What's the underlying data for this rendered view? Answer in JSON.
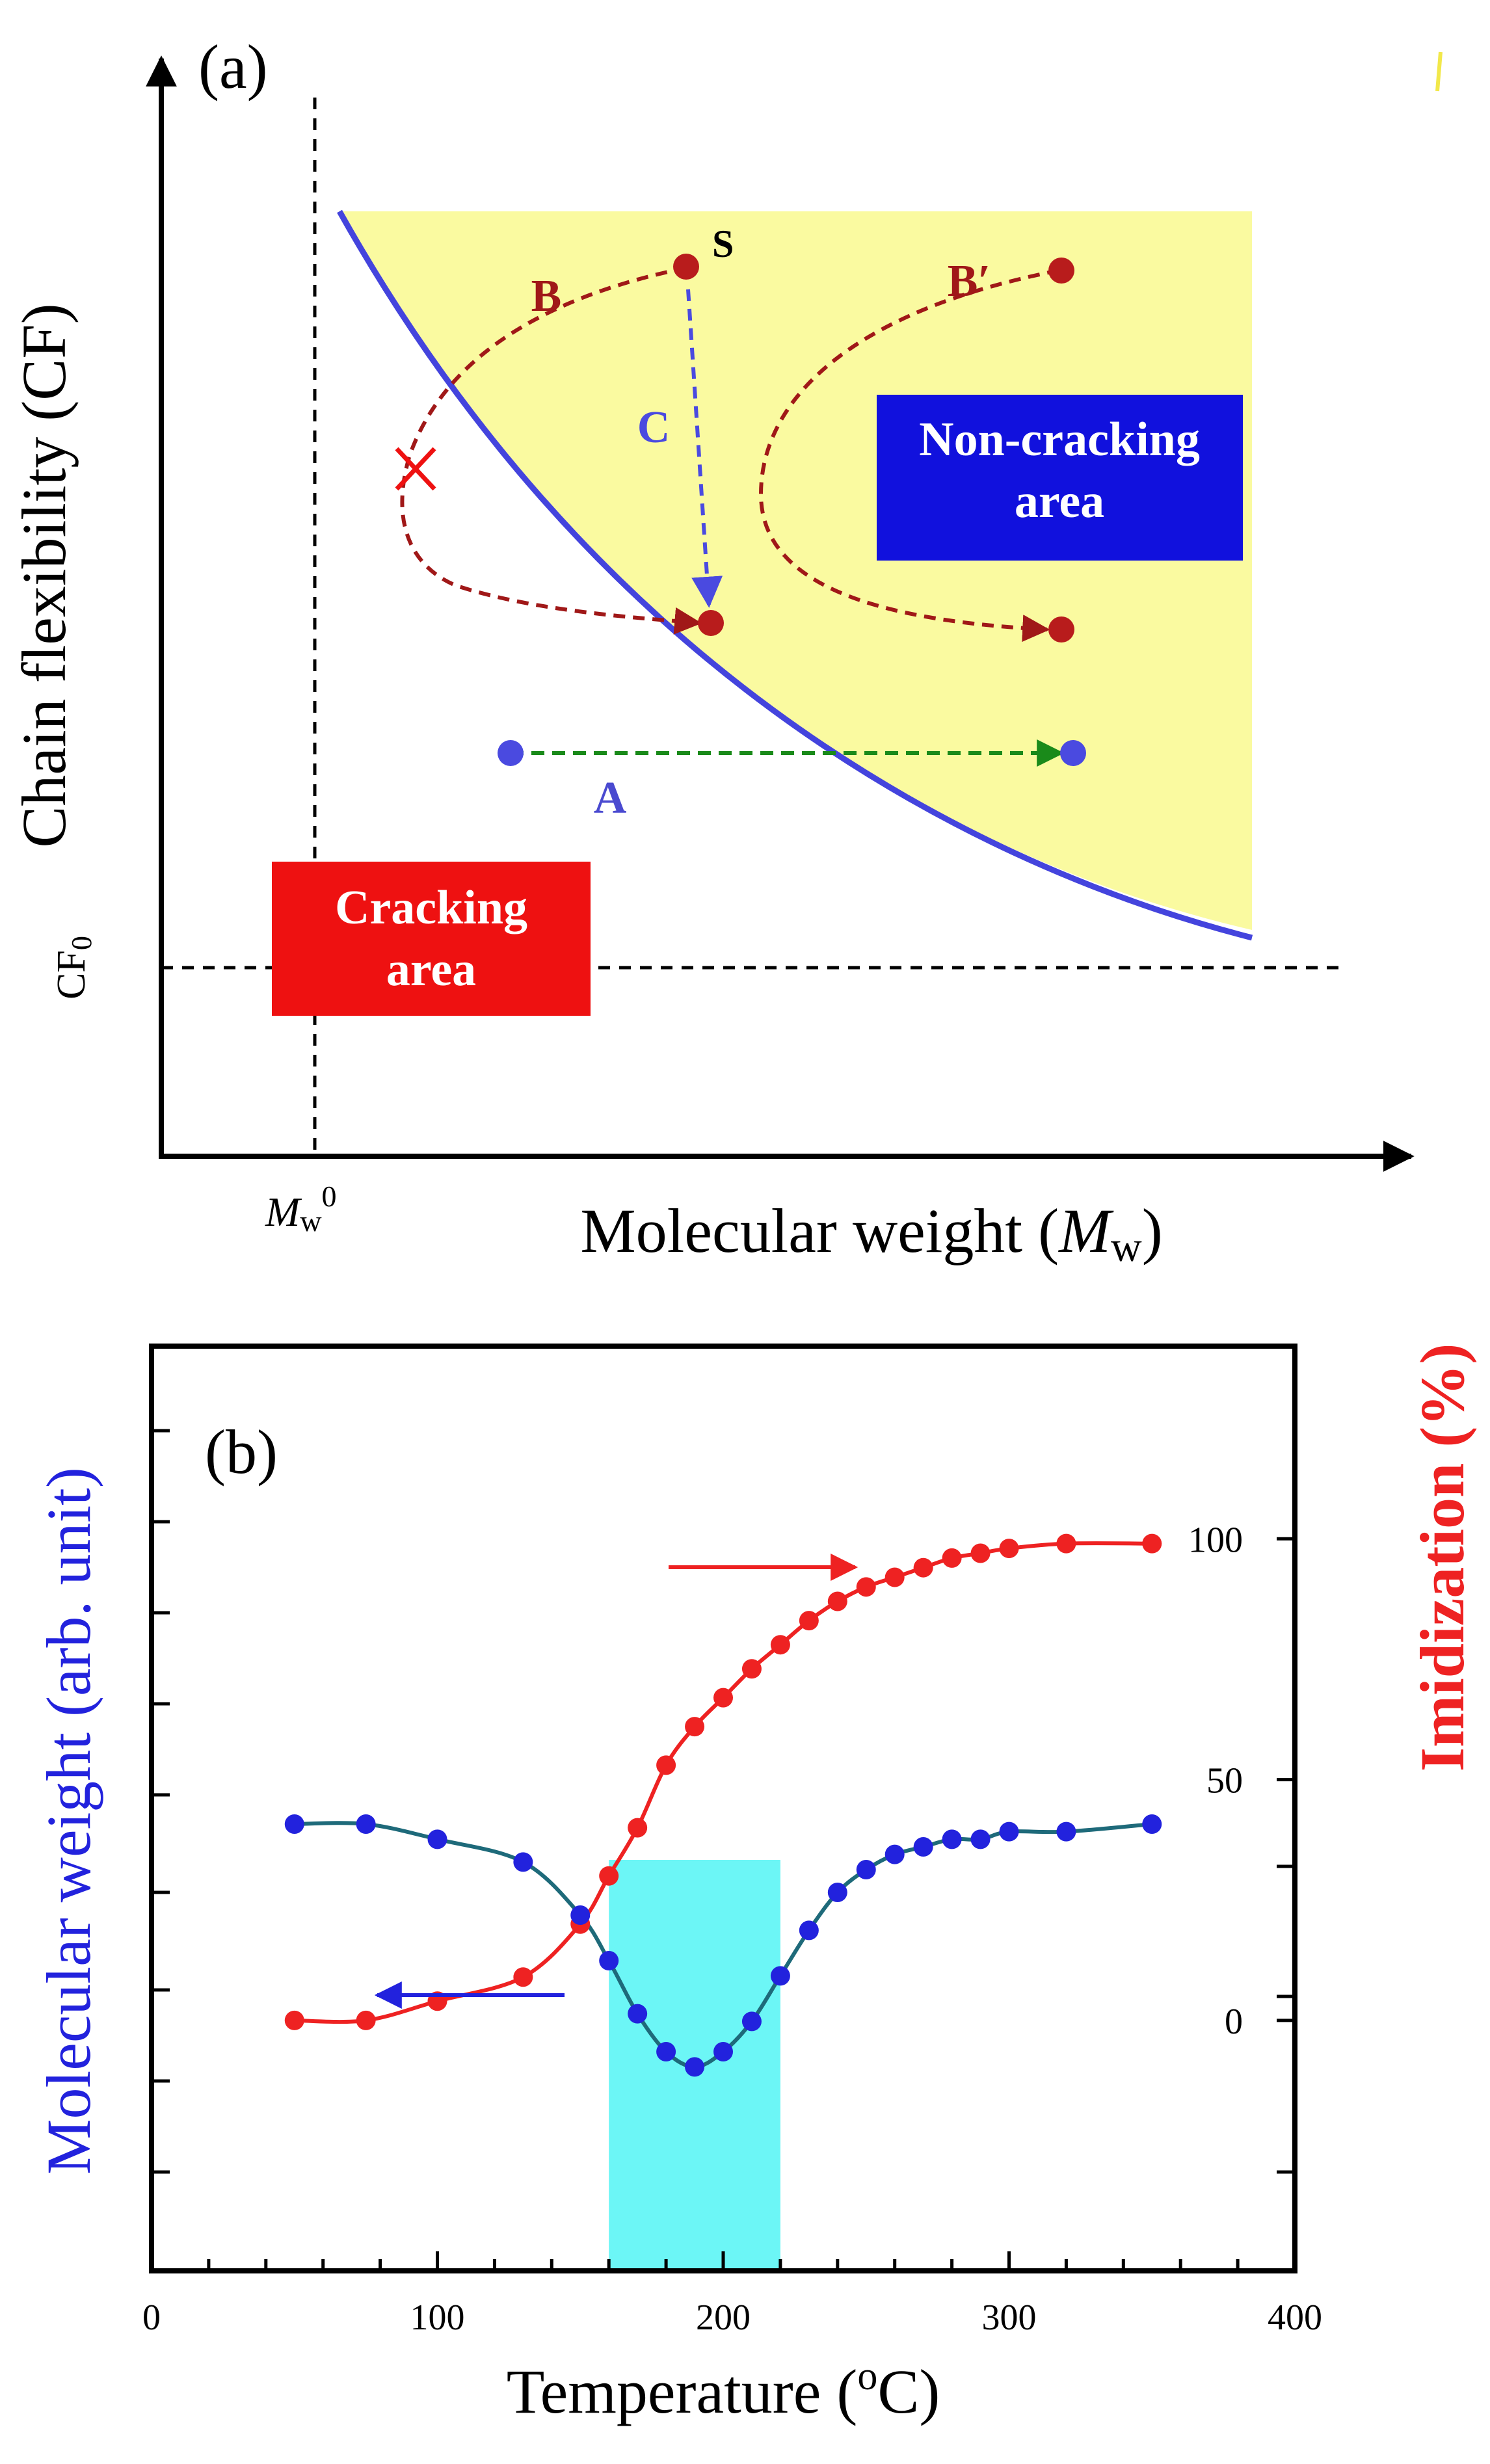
{
  "chart_data": [
    {
      "panel_label": "(a)",
      "type": "diagram",
      "xlabel": "Molecular weight (",
      "xlabel_italic": "M",
      "xlabel_sub": "w",
      "xlabel_close": ")",
      "ylabel": "Chain flexibility (CF)",
      "y_threshold_label": "CF",
      "y_threshold_sub": "0",
      "x_threshold_label": "M",
      "x_threshold_sub": "w",
      "x_threshold_sup": "0",
      "regions": {
        "cracking": "Cracking area",
        "cracking_lines": [
          "Cracking",
          "area"
        ],
        "noncracking": "Non-cracking area",
        "noncracking_lines": [
          "Non-cracking",
          "area"
        ],
        "cracking_color": "#ee1111",
        "noncracking_color": "#1111dd",
        "shade_color": "#fafaa0"
      },
      "paths": [
        {
          "label": "A",
          "color": "#1a8a1a",
          "label_color": "#4a4ad0"
        },
        {
          "label": "B",
          "color": "#a01818",
          "label_color": "#a01818"
        },
        {
          "label": "B′",
          "color": "#a01818",
          "label_color": "#a01818"
        },
        {
          "label": "C",
          "color": "#4a4ae0",
          "label_color": "#4a4ae0"
        }
      ],
      "start_label": "S",
      "boundary_color": "#4444dd"
    },
    {
      "panel_label": "(b)",
      "type": "line",
      "xlabel": "Temperature (",
      "xlabel_sup": "o",
      "xlabel_close": "C)",
      "xlim": [
        0,
        400
      ],
      "xticks": [
        "0",
        "100",
        "200",
        "300",
        "400"
      ],
      "ylabel_left": "Molecular weight (arb. unit)",
      "ylabel_right": "Imidization (%)",
      "ylim_right": [
        -52,
        140
      ],
      "yticks_right": [
        "0",
        "50",
        "100"
      ],
      "ylim_left": [
        0,
        1
      ],
      "highlight_x": [
        160,
        220
      ],
      "highlight_color": "#6cf6f6",
      "series": [
        {
          "name": "Imidization (%)",
          "axis": "right",
          "color": "#ee2222",
          "x": [
            50,
            75,
            100,
            130,
            150,
            160,
            170,
            180,
            190,
            200,
            210,
            220,
            230,
            240,
            250,
            260,
            270,
            280,
            290,
            300,
            320,
            350
          ],
          "y": [
            0,
            0,
            4,
            9,
            20,
            30,
            40,
            53,
            61,
            67,
            73,
            78,
            83,
            87,
            90,
            92,
            94,
            96,
            97,
            98,
            99,
            99
          ]
        },
        {
          "name": "Molecular weight",
          "axis": "left",
          "color": "#2222dd",
          "line_color": "#1e6a7a",
          "x": [
            50,
            75,
            100,
            130,
            150,
            160,
            170,
            180,
            190,
            200,
            210,
            220,
            230,
            240,
            250,
            260,
            270,
            280,
            290,
            300,
            320,
            350
          ],
          "y": [
            0.51,
            0.51,
            0.49,
            0.46,
            0.39,
            0.33,
            0.26,
            0.21,
            0.19,
            0.21,
            0.25,
            0.31,
            0.37,
            0.42,
            0.45,
            0.47,
            0.48,
            0.49,
            0.49,
            0.5,
            0.5,
            0.51
          ]
        }
      ]
    }
  ]
}
